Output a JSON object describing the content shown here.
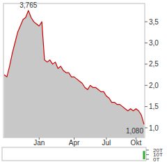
{
  "chart_data": [
    {
      "type": "area",
      "color": "#cc0000",
      "categories": [
        null,
        null,
        null,
        null,
        null,
        null,
        null,
        null,
        null,
        null,
        null,
        null,
        null,
        "Jan",
        null,
        null,
        null,
        null,
        null,
        null,
        null,
        null,
        null,
        null,
        null,
        null,
        "Apr",
        null,
        null,
        null,
        null,
        null,
        null,
        null,
        null,
        null,
        null,
        null,
        "Jul",
        null,
        null,
        null,
        null,
        null,
        null,
        null,
        null,
        null,
        null,
        "Okt",
        null,
        null,
        null
      ],
      "values": [
        2.25,
        2.2,
        2.45,
        2.75,
        3.0,
        3.25,
        3.4,
        3.55,
        3.6,
        3.765,
        3.6,
        3.5,
        3.45,
        3.4,
        3.5,
        2.6,
        2.55,
        2.6,
        2.5,
        2.55,
        2.4,
        2.45,
        2.35,
        2.3,
        2.3,
        2.2,
        2.2,
        2.15,
        2.1,
        2.05,
        1.95,
        1.9,
        2.0,
        1.95,
        1.95,
        1.9,
        1.85,
        1.85,
        1.75,
        1.7,
        1.6,
        1.6,
        1.55,
        1.55,
        1.5,
        1.45,
        1.4,
        1.45,
        1.4,
        1.45,
        1.4,
        1.3,
        1.08
      ],
      "value_labels": [
        null,
        null,
        null,
        null,
        null,
        null,
        null,
        null,
        null,
        "3,765",
        null,
        null,
        null,
        null,
        null,
        null,
        null,
        null,
        null,
        null,
        null,
        null,
        null,
        null,
        null,
        null,
        null,
        null,
        null,
        null,
        null,
        null,
        null,
        null,
        null,
        null,
        null,
        null,
        null,
        null,
        null,
        null,
        null,
        null,
        null,
        null,
        null,
        null,
        null,
        null,
        null,
        null,
        "1,080"
      ],
      "ylim": [
        0.77,
        3.93
      ],
      "yticks": [
        {
          "value": 1.0,
          "label": "1,0"
        },
        {
          "value": 1.5,
          "label": "1,5"
        },
        {
          "value": 2.0,
          "label": "2,0"
        },
        {
          "value": 2.5,
          "label": "2,5"
        },
        {
          "value": 3.0,
          "label": "3,0"
        },
        {
          "value": 3.5,
          "label": "3,5"
        }
      ],
      "grid": false
    },
    {
      "type": "bar",
      "color": "#33aa33",
      "tick_labels": "y",
      "categories": [
        null,
        null,
        null,
        null,
        null,
        null,
        null,
        null,
        null,
        null,
        null,
        null,
        null,
        null,
        null,
        null,
        null,
        null,
        null,
        null,
        null,
        null,
        null,
        null,
        null,
        null,
        null,
        null,
        null,
        null,
        null,
        null,
        null,
        null,
        null,
        null,
        null,
        null,
        null,
        null,
        null,
        null,
        null,
        null,
        null,
        null,
        null,
        null,
        null,
        null,
        null,
        null,
        null
      ],
      "values": [
        0,
        0,
        0,
        0,
        0,
        0,
        0,
        0,
        0,
        0,
        0,
        0,
        0,
        0,
        0,
        0,
        0,
        0,
        0,
        0,
        0,
        0,
        0,
        0,
        0,
        0,
        0,
        0,
        0,
        0,
        0,
        0,
        0,
        0,
        0,
        0,
        0,
        0,
        0,
        0,
        0,
        0,
        0,
        0,
        0,
        0,
        0,
        0,
        0,
        0,
        0,
        0,
        18000
      ],
      "ylim": [
        -3000,
        26000
      ],
      "yticks": [
        {
          "value": 0,
          "label": "0T"
        },
        {
          "value": 10000,
          "label": "10T"
        },
        {
          "value": 20000,
          "label": "20T"
        }
      ],
      "grid": false
    }
  ]
}
